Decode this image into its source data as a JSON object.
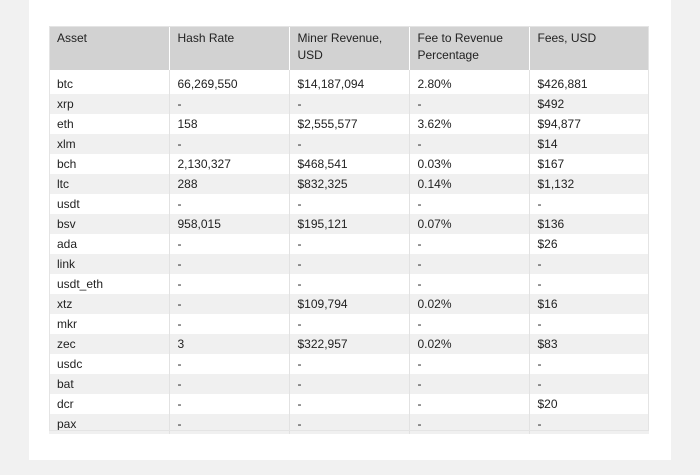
{
  "table": {
    "columns": [
      "Asset",
      "Hash Rate",
      "Miner Revenue, USD",
      "Fee to Revenue Percentage",
      "Fees, USD"
    ],
    "rows": [
      [
        "btc",
        "66,269,550",
        "$14,187,094",
        "2.80%",
        "$426,881"
      ],
      [
        "xrp",
        "-",
        "-",
        "-",
        "$492"
      ],
      [
        "eth",
        "158",
        "$2,555,577",
        "3.62%",
        "$94,877"
      ],
      [
        "xlm",
        "-",
        "-",
        "-",
        "$14"
      ],
      [
        "bch",
        "2,130,327",
        "$468,541",
        "0.03%",
        "$167"
      ],
      [
        "ltc",
        "288",
        "$832,325",
        "0.14%",
        "$1,132"
      ],
      [
        "usdt",
        "-",
        "-",
        "-",
        "-"
      ],
      [
        "bsv",
        "958,015",
        "$195,121",
        "0.07%",
        "$136"
      ],
      [
        "ada",
        "-",
        "-",
        "-",
        "$26"
      ],
      [
        "link",
        "-",
        "-",
        "-",
        "-"
      ],
      [
        "usdt_eth",
        "-",
        "-",
        "-",
        "-"
      ],
      [
        "xtz",
        "-",
        "$109,794",
        "0.02%",
        "$16"
      ],
      [
        "mkr",
        "-",
        "-",
        "-",
        "-"
      ],
      [
        "zec",
        "3",
        "$322,957",
        "0.02%",
        "$83"
      ],
      [
        "usdc",
        "-",
        "-",
        "-",
        "-"
      ],
      [
        "bat",
        "-",
        "-",
        "-",
        "-"
      ],
      [
        "dcr",
        "-",
        "-",
        "-",
        "$20"
      ],
      [
        "pax",
        "-",
        "-",
        "-",
        "-"
      ]
    ]
  }
}
